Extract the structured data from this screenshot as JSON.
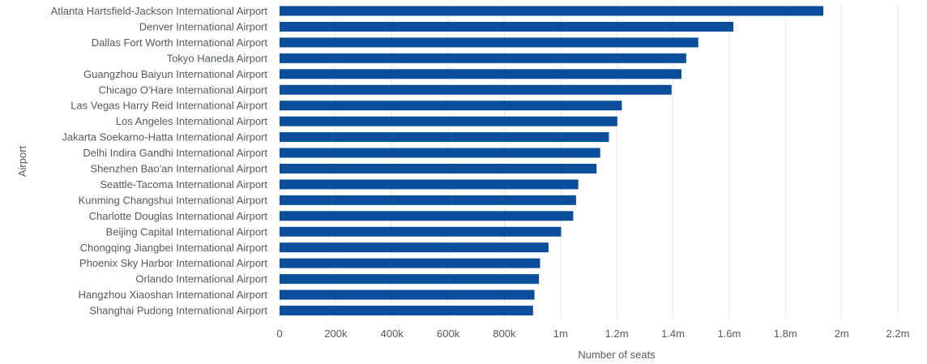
{
  "chart_data": {
    "type": "bar",
    "orientation": "horizontal",
    "xlabel": "Number of seats",
    "ylabel": "Airport",
    "xlim": [
      0,
      2200000
    ],
    "grid": true,
    "bar_color": "#0b4f9c",
    "categories": [
      "Atlanta Hartsfield-Jackson International Airport",
      "Denver International Airport",
      "Dallas Fort Worth International Airport",
      "Tokyo Haneda Airport",
      "Guangzhou Baiyun International Airport",
      "Chicago O'Hare International Airport",
      "Las Vegas Harry Reid International Airport",
      "Los Angeles International Airport",
      "Jakarta Soekarno-Hatta International Airport",
      "Delhi Indira Gandhi International Airport",
      "Shenzhen Bao'an International Airport",
      "Seattle-Tacoma International Airport",
      "Kunming Changshui International Airport",
      "Charlotte Douglas International Airport",
      "Beijing Capital International Airport",
      "Chongqing Jiangbei International Airport",
      "Phoenix Sky Harbor International Airport",
      "Orlando International Airport",
      "Hangzhou Xiaoshan International Airport",
      "Shanghai Pudong International Airport"
    ],
    "values": [
      1935000,
      1615000,
      1490000,
      1447000,
      1430000,
      1395000,
      1218000,
      1202000,
      1172000,
      1141000,
      1128000,
      1063000,
      1055000,
      1045000,
      1002000,
      957000,
      927000,
      923000,
      907000,
      902000
    ],
    "ticks": [
      0,
      200000,
      400000,
      600000,
      800000,
      1000000,
      1200000,
      1400000,
      1600000,
      1800000,
      2000000,
      2200000
    ],
    "tick_labels": [
      "0",
      "200k",
      "400k",
      "600k",
      "800k",
      "1m",
      "1.2m",
      "1.4m",
      "1.6m",
      "1.8m",
      "2m",
      "2.2m"
    ]
  }
}
